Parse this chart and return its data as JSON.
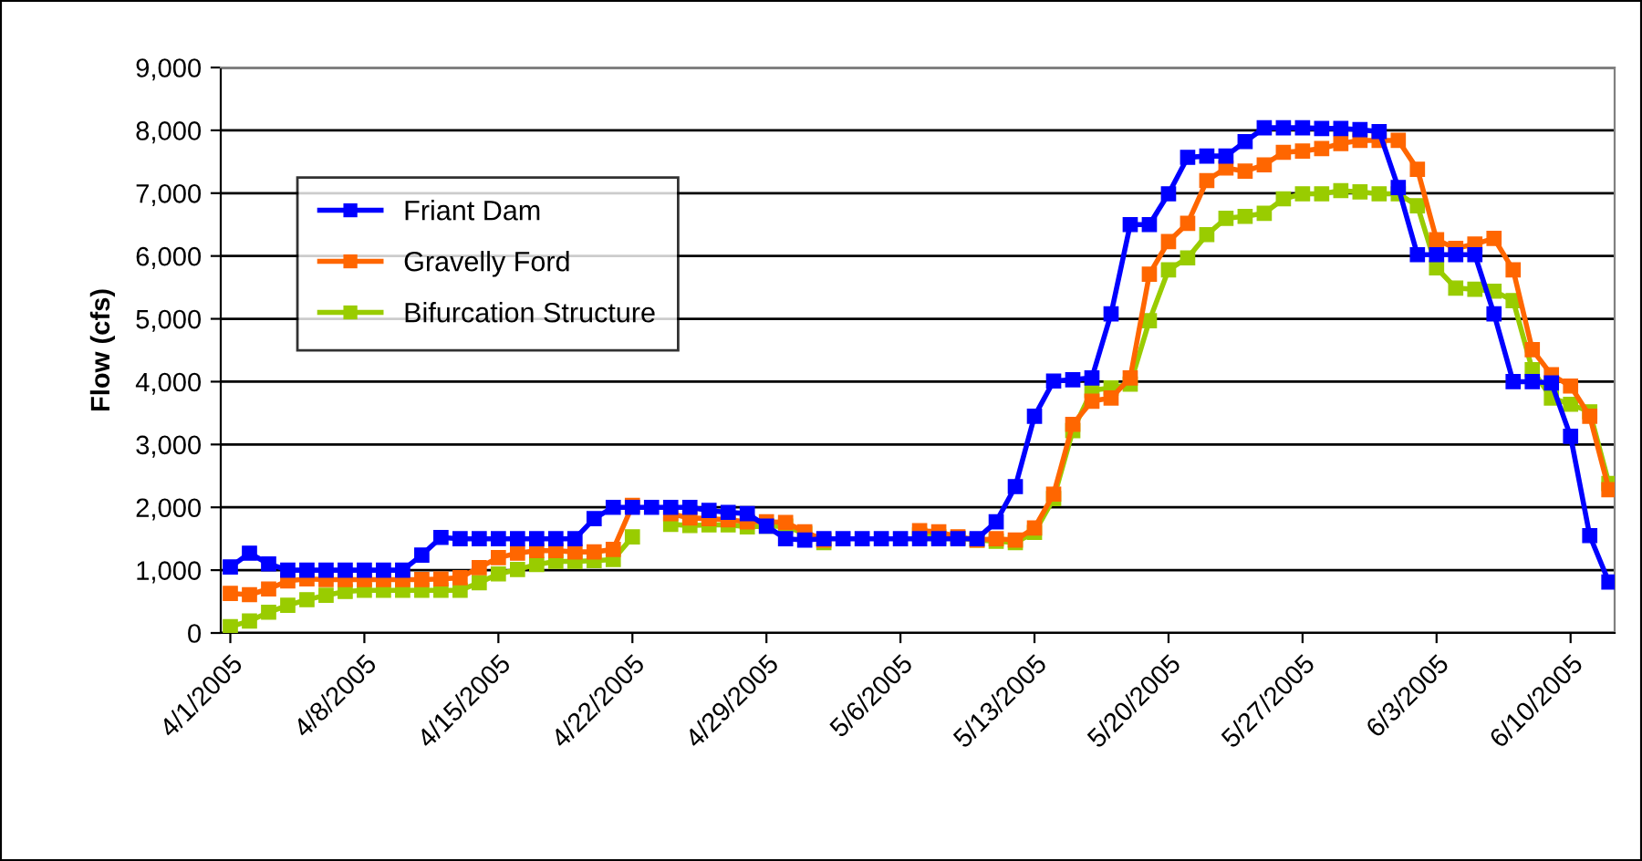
{
  "chart_data": {
    "type": "line",
    "ylabel": "Flow (cfs)",
    "categories": [
      "4/1/2005",
      null,
      null,
      null,
      null,
      null,
      null,
      "4/8/2005",
      null,
      null,
      null,
      null,
      null,
      null,
      "4/15/2005",
      null,
      null,
      null,
      null,
      null,
      null,
      "4/22/2005",
      null,
      null,
      null,
      null,
      null,
      null,
      "4/29/2005",
      null,
      null,
      null,
      null,
      null,
      null,
      "5/6/2005",
      null,
      null,
      null,
      null,
      null,
      null,
      "5/13/2005",
      null,
      null,
      null,
      null,
      null,
      null,
      "5/20/2005",
      null,
      null,
      null,
      null,
      null,
      null,
      "5/27/2005",
      null,
      null,
      null,
      null,
      null,
      null,
      "6/3/2005",
      null,
      null,
      null,
      null,
      null,
      null,
      "6/10/2005",
      null,
      null
    ],
    "series": [
      {
        "name": "Friant Dam",
        "color": "#0000ff",
        "values": [
          1050,
          1270,
          1100,
          1000,
          1000,
          1000,
          1000,
          1000,
          1000,
          1000,
          1240,
          1520,
          1500,
          1500,
          1500,
          1500,
          1500,
          1500,
          1500,
          1820,
          2000,
          2000,
          2000,
          2000,
          2000,
          1950,
          1920,
          1900,
          1700,
          1500,
          1480,
          1500,
          1500,
          1500,
          1500,
          1500,
          1500,
          1500,
          1500,
          1500,
          1770,
          2330,
          3450,
          4010,
          4030,
          4060,
          5080,
          6500,
          6500,
          6990,
          7570,
          7590,
          7590,
          7820,
          8040,
          8040,
          8040,
          8030,
          8030,
          8010,
          7980,
          7090,
          6020,
          6020,
          6020,
          6020,
          5080,
          4000,
          4000,
          3980,
          3130,
          1550,
          810
        ]
      },
      {
        "name": "Gravelly Ford",
        "color": "#ff6600",
        "values": [
          630,
          610,
          700,
          830,
          860,
          850,
          850,
          850,
          850,
          850,
          850,
          860,
          880,
          1040,
          1200,
          1270,
          1310,
          1310,
          1290,
          1290,
          1330,
          2030,
          null,
          1900,
          1830,
          1820,
          1800,
          1770,
          1770,
          1760,
          1610,
          1480,
          null,
          null,
          null,
          null,
          1630,
          1610,
          1530,
          1480,
          1500,
          1480,
          1670,
          2210,
          3320,
          3690,
          3740,
          4060,
          5710,
          6230,
          6520,
          7200,
          7400,
          7350,
          7450,
          7650,
          7670,
          7710,
          7790,
          7840,
          7840,
          7840,
          7380,
          6260,
          6120,
          6190,
          6280,
          5780,
          4510,
          4110,
          3930,
          3450,
          2280
        ]
      },
      {
        "name": "Bifurcation Structure",
        "color": "#99cc00",
        "values": [
          100,
          190,
          330,
          440,
          530,
          600,
          660,
          680,
          680,
          680,
          680,
          680,
          680,
          800,
          940,
          1010,
          1090,
          1140,
          1140,
          1150,
          1170,
          1530,
          null,
          1730,
          1710,
          1720,
          1720,
          1690,
          1700,
          1700,
          1580,
          1440,
          null,
          null,
          null,
          null,
          1560,
          1530,
          1510,
          1480,
          1460,
          1440,
          1600,
          2140,
          3220,
          3860,
          3900,
          3960,
          4970,
          5780,
          5970,
          6340,
          6600,
          6630,
          6680,
          6910,
          6990,
          6990,
          7040,
          7020,
          6990,
          6990,
          6800,
          5810,
          5490,
          5470,
          5440,
          5290,
          4190,
          3740,
          3640,
          3520,
          2380
        ]
      }
    ],
    "ylim": [
      0,
      9000
    ],
    "yticks": [
      {
        "value": 0,
        "label": "0"
      },
      {
        "value": 1000,
        "label": "1,000"
      },
      {
        "value": 2000,
        "label": "2,000"
      },
      {
        "value": 3000,
        "label": "3,000"
      },
      {
        "value": 4000,
        "label": "4,000"
      },
      {
        "value": 5000,
        "label": "5,000"
      },
      {
        "value": 6000,
        "label": "6,000"
      },
      {
        "value": 7000,
        "label": "7,000"
      },
      {
        "value": 8000,
        "label": "8,000"
      },
      {
        "value": 9000,
        "label": "9,000"
      }
    ],
    "grid": "y",
    "legend": "top left",
    "marker": "square",
    "line_style": "solid"
  }
}
